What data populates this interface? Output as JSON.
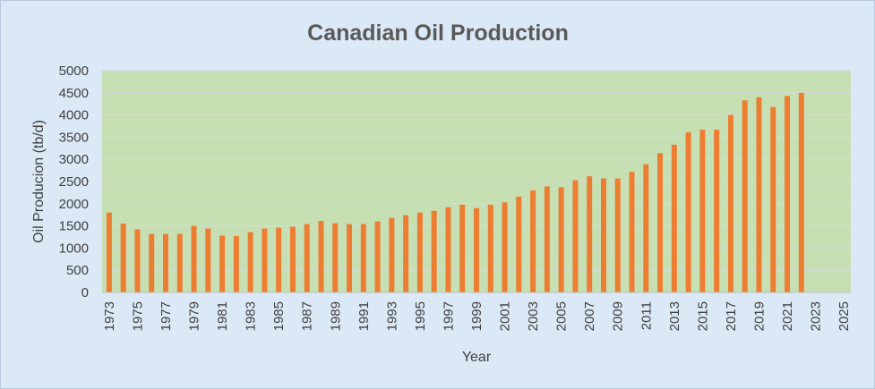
{
  "chart_data": {
    "type": "bar",
    "title": "Canadian Oil Production",
    "xlabel": "Year",
    "ylabel": "Oil Producion (tb/d)",
    "ylim": [
      0,
      5000
    ],
    "yticks": [
      0,
      500,
      1000,
      1500,
      2000,
      2500,
      3000,
      3500,
      4000,
      4500,
      5000
    ],
    "xlim": [
      1973,
      2025
    ],
    "xticks": [
      1973,
      1975,
      1977,
      1979,
      1981,
      1983,
      1985,
      1987,
      1989,
      1991,
      1993,
      1995,
      1997,
      1999,
      2001,
      2003,
      2005,
      2007,
      2009,
      2011,
      2013,
      2015,
      2017,
      2019,
      2021,
      2023,
      2025
    ],
    "grid": true,
    "legend": "none",
    "colors": {
      "bar": "#ed7d31",
      "plot_bg": "#c6e0b4",
      "chart_bg": "#dbe8f6",
      "grid": "#d9d9d9"
    },
    "x": [
      1973,
      1974,
      1975,
      1976,
      1977,
      1978,
      1979,
      1980,
      1981,
      1982,
      1983,
      1984,
      1985,
      1986,
      1987,
      1988,
      1989,
      1990,
      1991,
      1992,
      1993,
      1994,
      1995,
      1996,
      1997,
      1998,
      1999,
      2000,
      2001,
      2002,
      2003,
      2004,
      2005,
      2006,
      2007,
      2008,
      2009,
      2010,
      2011,
      2012,
      2013,
      2014,
      2015,
      2016,
      2017,
      2018,
      2019,
      2020,
      2021,
      2022
    ],
    "values": [
      1800,
      1550,
      1420,
      1320,
      1320,
      1320,
      1500,
      1440,
      1280,
      1270,
      1360,
      1440,
      1460,
      1480,
      1540,
      1610,
      1560,
      1540,
      1540,
      1600,
      1680,
      1740,
      1800,
      1840,
      1920,
      1980,
      1900,
      1980,
      2030,
      2160,
      2300,
      2390,
      2370,
      2530,
      2620,
      2570,
      2570,
      2720,
      2890,
      3140,
      3330,
      3610,
      3670,
      3670,
      4000,
      4330,
      4400,
      4180,
      4430,
      4500
    ]
  }
}
